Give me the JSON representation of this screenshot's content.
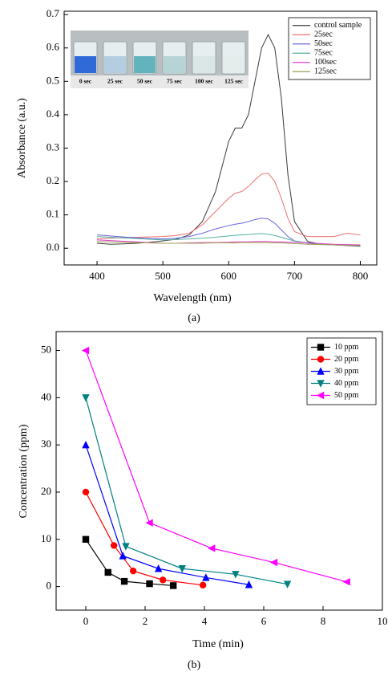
{
  "chart_data": [
    {
      "type": "line",
      "caption": "(a)",
      "x_label": "Wavelength (nm)",
      "y_label": "Absorbance (a.u.)",
      "xlim": [
        350,
        825
      ],
      "ylim": [
        -0.05,
        0.71
      ],
      "xticks": [
        400,
        500,
        600,
        700,
        800
      ],
      "yticks": [
        {
          "value": 0,
          "label": "0.0"
        },
        0.1,
        0.2,
        0.3,
        0.4,
        0.5,
        0.6,
        0.7
      ],
      "legend": "upper right",
      "inset_labels": [
        "0 sec",
        "25 sec",
        "50 sec",
        "75 sec",
        "100 sec",
        "125 sec"
      ],
      "x": [
        400,
        420,
        440,
        460,
        480,
        500,
        520,
        540,
        560,
        580,
        600,
        610,
        620,
        630,
        640,
        650,
        660,
        670,
        680,
        690,
        700,
        720,
        740,
        760,
        780,
        800
      ],
      "series": [
        {
          "name": "control sample",
          "color": "#3a3a3a",
          "values": [
            0.015,
            0.012,
            0.013,
            0.015,
            0.018,
            0.022,
            0.027,
            0.04,
            0.08,
            0.17,
            0.32,
            0.36,
            0.36,
            0.4,
            0.5,
            0.6,
            0.64,
            0.6,
            0.45,
            0.22,
            0.08,
            0.02,
            0.012,
            0.01,
            0.008,
            0.006
          ]
        },
        {
          "name": "25sec",
          "color": "#f07070",
          "values": [
            0.028,
            0.03,
            0.032,
            0.033,
            0.034,
            0.035,
            0.038,
            0.045,
            0.07,
            0.11,
            0.15,
            0.165,
            0.17,
            0.185,
            0.205,
            0.222,
            0.225,
            0.2,
            0.15,
            0.09,
            0.05,
            0.035,
            0.035,
            0.035,
            0.045,
            0.04
          ]
        },
        {
          "name": "50sec",
          "color": "#6666dd",
          "values": [
            0.04,
            0.037,
            0.034,
            0.031,
            0.029,
            0.028,
            0.03,
            0.035,
            0.045,
            0.058,
            0.068,
            0.072,
            0.075,
            0.08,
            0.086,
            0.09,
            0.088,
            0.075,
            0.055,
            0.035,
            0.022,
            0.015,
            0.012,
            0.01,
            0.009,
            0.008
          ]
        },
        {
          "name": "75sec",
          "color": "#55b0a0",
          "values": [
            0.035,
            0.033,
            0.031,
            0.029,
            0.027,
            0.025,
            0.026,
            0.028,
            0.03,
            0.033,
            0.037,
            0.039,
            0.04,
            0.041,
            0.043,
            0.044,
            0.042,
            0.038,
            0.033,
            0.027,
            0.022,
            0.016,
            0.012,
            0.01,
            0.009,
            0.008
          ]
        },
        {
          "name": "100sec",
          "color": "#e040d0",
          "values": [
            0.025,
            0.023,
            0.021,
            0.019,
            0.017,
            0.015,
            0.015,
            0.016,
            0.017,
            0.017,
            0.018,
            0.019,
            0.019,
            0.019,
            0.02,
            0.02,
            0.02,
            0.019,
            0.019,
            0.018,
            0.018,
            0.016,
            0.014,
            0.012,
            0.011,
            0.01
          ]
        },
        {
          "name": "125sec",
          "color": "#a0a050",
          "values": [
            0.02,
            0.019,
            0.018,
            0.017,
            0.016,
            0.015,
            0.015,
            0.015,
            0.015,
            0.016,
            0.016,
            0.016,
            0.017,
            0.017,
            0.017,
            0.017,
            0.017,
            0.016,
            0.016,
            0.015,
            0.014,
            0.012,
            0.011,
            0.01,
            0.009,
            0.008
          ]
        }
      ]
    },
    {
      "type": "line",
      "caption": "(b)",
      "x_label": "Time (min)",
      "y_label": "Concentration (ppm)",
      "xlim": [
        -1,
        10
      ],
      "ylim": [
        -5,
        54
      ],
      "xticks": [
        0,
        2,
        4,
        6,
        8,
        10
      ],
      "yticks": [
        0,
        10,
        20,
        30,
        40,
        50
      ],
      "legend": "upper right",
      "series": [
        {
          "name": "10 ppm",
          "color": "#000000",
          "marker": "square",
          "x": [
            0,
            0.75,
            1.3,
            2.15,
            2.95
          ],
          "values": [
            10,
            3,
            1.1,
            0.6,
            0.2
          ]
        },
        {
          "name": "20 ppm",
          "color": "#ff0000",
          "marker": "circle",
          "x": [
            0,
            0.95,
            1.6,
            2.6,
            3.95
          ],
          "values": [
            20,
            8.7,
            3.3,
            1.4,
            0.3
          ]
        },
        {
          "name": "30 ppm",
          "color": "#0000ff",
          "marker": "triangle-up",
          "x": [
            0,
            1.25,
            2.45,
            4.05,
            5.5
          ],
          "values": [
            30,
            6.5,
            3.8,
            1.9,
            0.4
          ]
        },
        {
          "name": "40 ppm",
          "color": "#008080",
          "marker": "triangle-down",
          "x": [
            0,
            1.35,
            3.25,
            5.05,
            6.8
          ],
          "values": [
            40,
            8.5,
            3.8,
            2.6,
            0.5
          ]
        },
        {
          "name": "50 ppm",
          "color": "#ff00ff",
          "marker": "triangle-left",
          "x": [
            0,
            2.15,
            4.25,
            6.35,
            8.8
          ],
          "values": [
            50,
            13.5,
            8.1,
            5.1,
            1.0
          ]
        }
      ]
    }
  ]
}
